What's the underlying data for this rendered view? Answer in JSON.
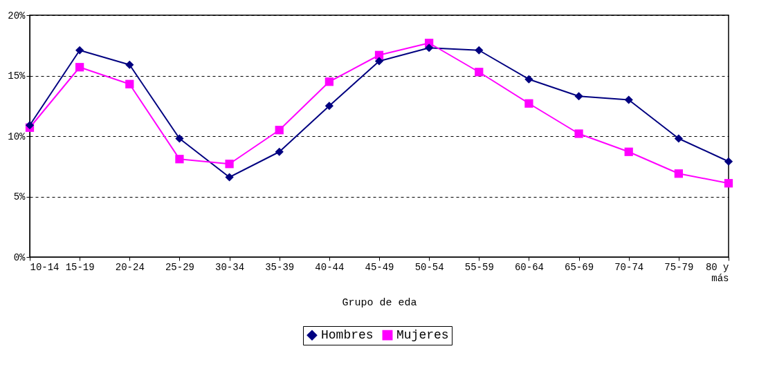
{
  "chart_data": {
    "type": "line",
    "xlabel": "Grupo de eda",
    "categories": [
      "10-14",
      "15-19",
      "20-24",
      "25-29",
      "30-34",
      "35-39",
      "40-44",
      "45-49",
      "50-54",
      "55-59",
      "60-64",
      "65-69",
      "70-74",
      "75-79",
      "80 y más"
    ],
    "series": [
      {
        "name": "Hombres",
        "color": "#000080",
        "marker": "diamond",
        "values": [
          10.9,
          17.1,
          15.9,
          9.8,
          6.6,
          8.7,
          12.5,
          16.2,
          17.3,
          17.1,
          14.7,
          13.3,
          13.0,
          9.8,
          7.9
        ]
      },
      {
        "name": "Mujeres",
        "color": "#ff00ff",
        "marker": "square",
        "values": [
          10.7,
          15.7,
          14.3,
          8.1,
          7.7,
          10.5,
          14.5,
          16.7,
          17.7,
          15.3,
          12.7,
          10.2,
          8.7,
          6.9,
          6.1
        ]
      }
    ],
    "ylim": [
      0,
      20
    ],
    "yticks": [
      {
        "value": 0,
        "label": "0%"
      },
      {
        "value": 5,
        "label": "5%"
      },
      {
        "value": 10,
        "label": "10%"
      },
      {
        "value": 15,
        "label": "15%"
      },
      {
        "value": 20,
        "label": "20%"
      }
    ],
    "grid": "y",
    "legend": "bottom",
    "line_style": "solid"
  }
}
